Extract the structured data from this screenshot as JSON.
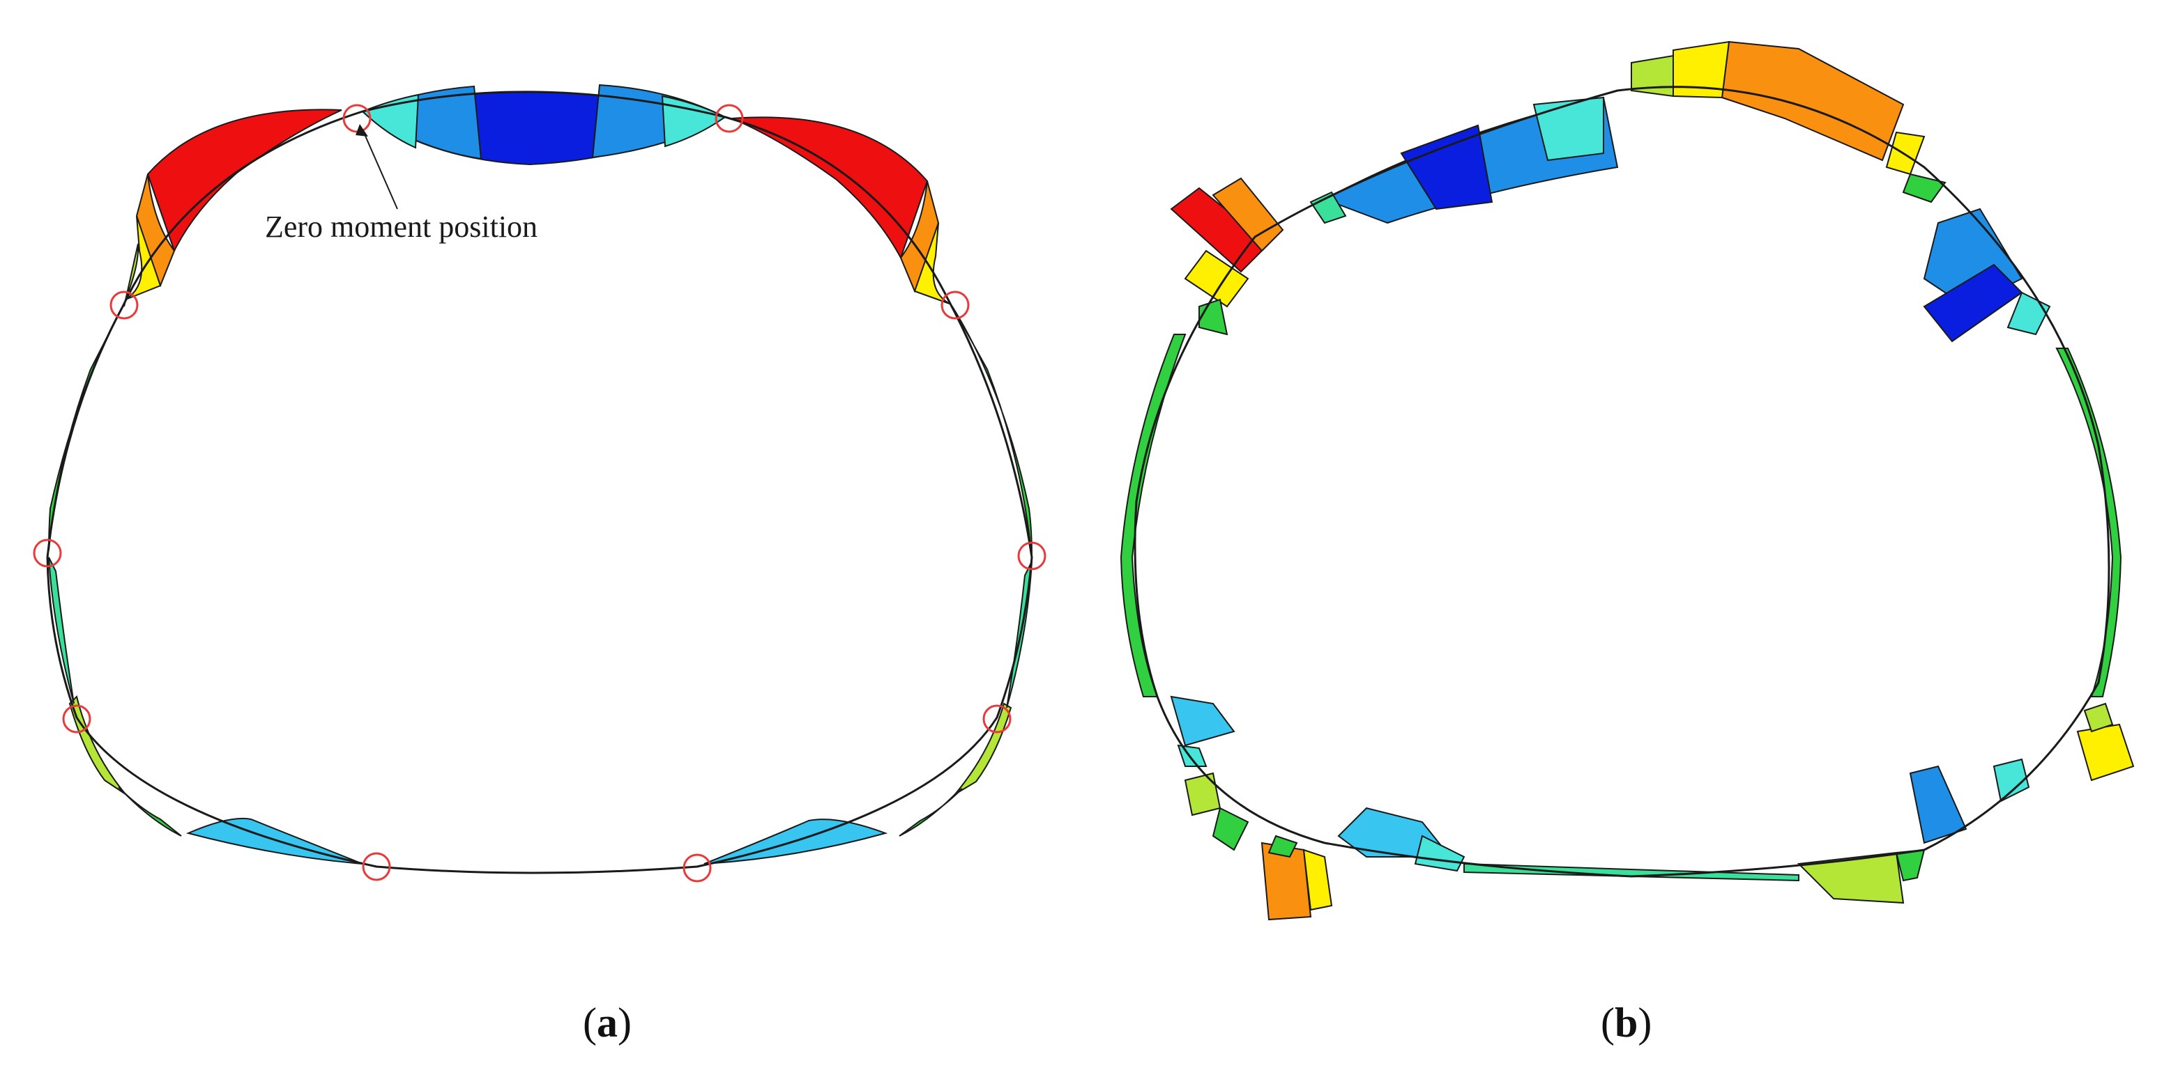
{
  "panels": [
    {
      "id": "a",
      "caption_open": "(",
      "caption_letter": "a",
      "caption_close": ")",
      "annotation": "Zero moment position",
      "marker_color": "#e83a3a",
      "marker_count": 10
    },
    {
      "id": "b",
      "caption_open": "(",
      "caption_letter": "b",
      "caption_close": ")"
    }
  ],
  "palette": {
    "outline": "#1a1a1a",
    "dark_blue": "#0a1ee0",
    "blue": "#1e8ee6",
    "light_blue": "#38c6f0",
    "cyan": "#48e6d8",
    "teal": "#3ae09a",
    "green": "#30d040",
    "yellow_green": "#b4e638",
    "yellow": "#fff000",
    "orange": "#fa9010",
    "red": "#ee1010"
  }
}
